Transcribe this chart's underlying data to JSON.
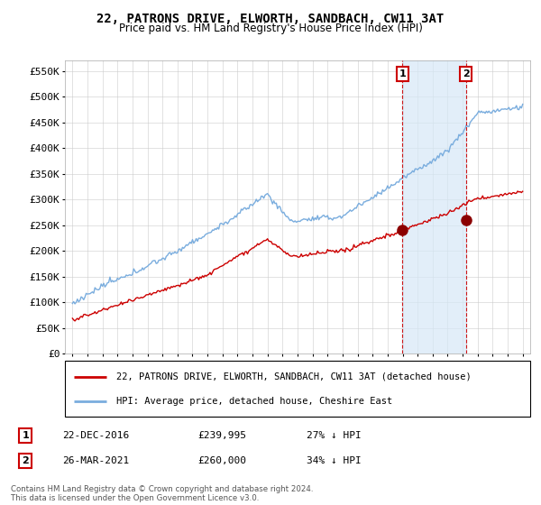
{
  "title": "22, PATRONS DRIVE, ELWORTH, SANDBACH, CW11 3AT",
  "subtitle": "Price paid vs. HM Land Registry's House Price Index (HPI)",
  "ylabel_ticks": [
    "£0",
    "£50K",
    "£100K",
    "£150K",
    "£200K",
    "£250K",
    "£300K",
    "£350K",
    "£400K",
    "£450K",
    "£500K",
    "£550K"
  ],
  "ytick_values": [
    0,
    50000,
    100000,
    150000,
    200000,
    250000,
    300000,
    350000,
    400000,
    450000,
    500000,
    550000
  ],
  "ylim": [
    0,
    570000
  ],
  "legend_line1": "22, PATRONS DRIVE, ELWORTH, SANDBACH, CW11 3AT (detached house)",
  "legend_line2": "HPI: Average price, detached house, Cheshire East",
  "sale1_date": "22-DEC-2016",
  "sale1_price": 239995,
  "sale1_label": "27% ↓ HPI",
  "sale2_date": "26-MAR-2021",
  "sale2_price": 260000,
  "sale2_label": "34% ↓ HPI",
  "footer": "Contains HM Land Registry data © Crown copyright and database right 2024.\nThis data is licensed under the Open Government Licence v3.0.",
  "hpi_color": "#7aadde",
  "price_color": "#cc0000",
  "marker_color": "#8b0000",
  "dashed_color": "#cc0000",
  "shade_color": "#d6e8f7",
  "background_color": "#ffffff",
  "grid_color": "#cccccc"
}
